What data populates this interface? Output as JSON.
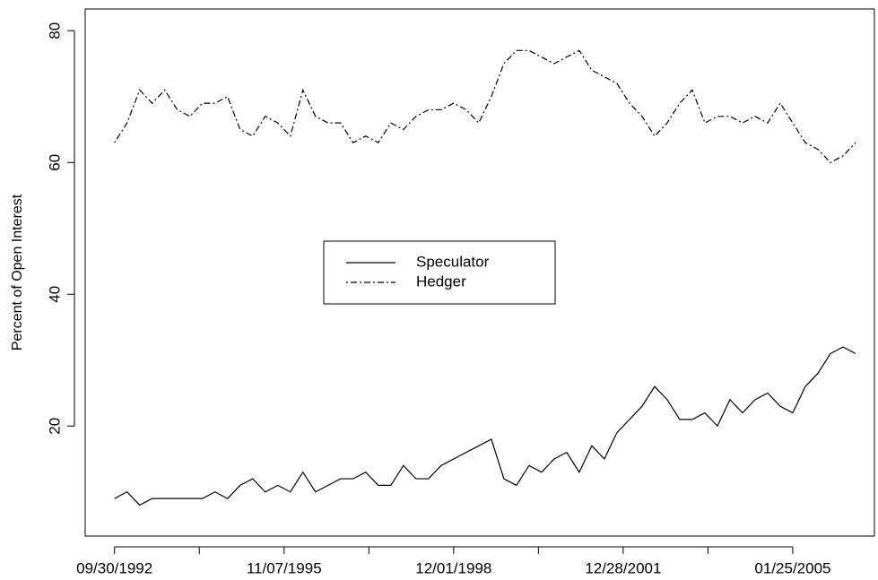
{
  "chart_data": {
    "type": "line",
    "y_label": "Percent of Open Interest",
    "x": [
      0,
      12,
      24,
      36,
      48,
      60,
      72,
      84,
      96,
      108,
      120,
      132,
      144,
      156,
      168,
      180,
      192,
      204,
      216,
      228,
      240,
      252,
      264,
      276,
      288,
      300,
      312,
      324,
      336,
      348,
      360,
      372,
      384,
      396,
      408,
      420,
      432,
      444,
      456,
      468,
      480,
      492,
      504,
      516,
      528,
      540,
      552,
      564,
      576,
      588,
      600,
      612,
      624,
      636,
      648,
      660,
      672,
      684,
      696,
      708
    ],
    "series": [
      {
        "name": "Speculator",
        "color": "#000000",
        "dash": "solid",
        "values": [
          9,
          10,
          8,
          9,
          9,
          9,
          9,
          9,
          10,
          9,
          11,
          12,
          10,
          11,
          10,
          13,
          10,
          11,
          12,
          12,
          13,
          11,
          11,
          14,
          12,
          12,
          14,
          15,
          16,
          17,
          18,
          12,
          11,
          14,
          13,
          15,
          16,
          13,
          17,
          15,
          19,
          21,
          23,
          26,
          24,
          21,
          21,
          22,
          20,
          24,
          22,
          24,
          25,
          23,
          22,
          26,
          28,
          31,
          32,
          31
        ]
      },
      {
        "name": "Hedger",
        "color": "#000000",
        "dash": "dotdash",
        "values": [
          63,
          66,
          71,
          69,
          71,
          68,
          67,
          69,
          69,
          70,
          65,
          64,
          67,
          66,
          64,
          71,
          67,
          66,
          66,
          63,
          64,
          63,
          66,
          65,
          67,
          68,
          68,
          69,
          68,
          66,
          70,
          75,
          77,
          77,
          76,
          75,
          76,
          77,
          74,
          73,
          72,
          69,
          67,
          64,
          66,
          69,
          71,
          66,
          67,
          67,
          66,
          67,
          66,
          69,
          66,
          63,
          62,
          60,
          61,
          63
        ]
      }
    ],
    "xlim": [
      -28,
      726
    ],
    "xticks": [
      {
        "value": 0,
        "label": "09/30/1992"
      },
      {
        "value": 162,
        "label": "11/07/1995"
      },
      {
        "value": 324,
        "label": "12/01/1998"
      },
      {
        "value": 486,
        "label": "12/28/2001"
      },
      {
        "value": 648,
        "label": "01/25/2005"
      }
    ],
    "xminor_ticks": [
      81,
      243,
      405,
      567
    ],
    "ylim": [
      3.3,
      83.3
    ],
    "yticks": [
      20,
      40,
      60,
      80
    ],
    "legend": "center"
  }
}
